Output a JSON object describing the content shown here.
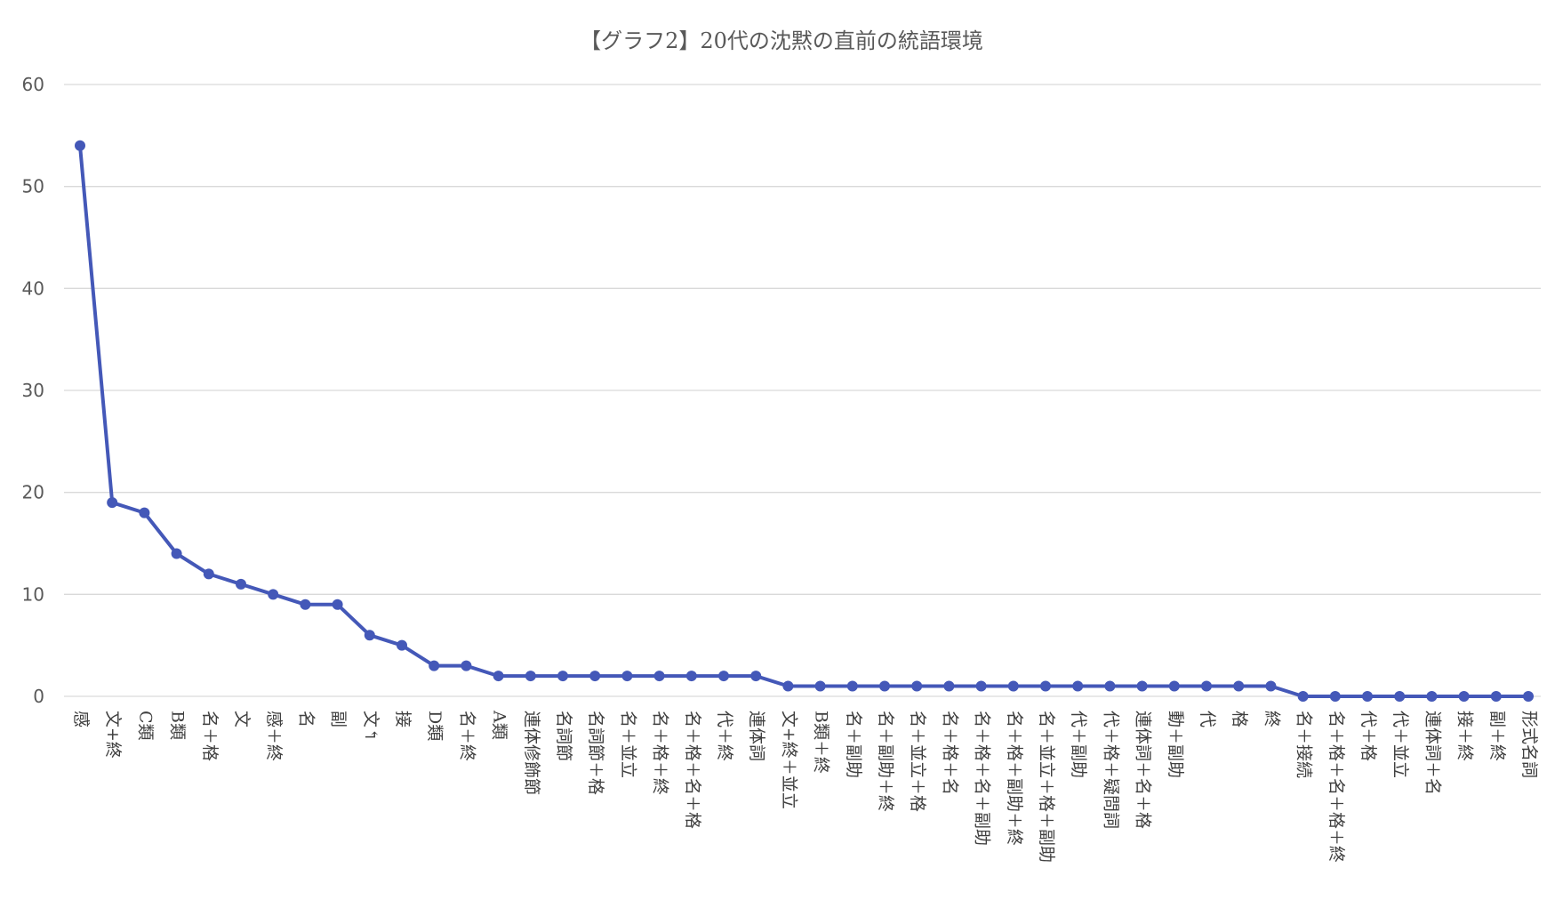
{
  "chart_data": {
    "type": "line",
    "title": "【グラフ2】20代の沈黙の直前の統語環境",
    "xlabel": "",
    "ylabel": "",
    "ylim": [
      0,
      60
    ],
    "yticks": [
      0,
      10,
      20,
      30,
      40,
      50,
      60
    ],
    "grid": true,
    "legend": "none",
    "colors": {
      "line": "#4458B8",
      "grid": "#D9D9D9",
      "text": "#595959"
    },
    "categories": [
      "感",
      "文+終",
      "C類",
      "B類",
      "名＋格",
      "文",
      "感＋終",
      "名",
      "副",
      "文↰",
      "接",
      "D類",
      "名＋終",
      "A類",
      "連体修飾節",
      "名詞節",
      "名詞節＋格",
      "名＋並立",
      "名＋格＋終",
      "名＋格＋名＋格",
      "代＋終",
      "連体詞",
      "文+終＋並立",
      "B類＋終",
      "名＋副助",
      "名＋副助＋終",
      "名＋並立＋格",
      "名＋格＋名",
      "名＋格＋名＋副助",
      "名＋格＋副助＋終",
      "名＋並立＋格＋副助",
      "代＋副助",
      "代＋格＋疑問詞",
      "連体詞＋名＋格",
      "動＋副助",
      "代",
      "格",
      "終",
      "名＋接続",
      "名＋格＋名＋格＋終",
      "代＋格",
      "代＋並立",
      "連体詞＋名",
      "接＋終",
      "副＋終",
      "形式名詞"
    ],
    "series": [
      {
        "values": [
          54,
          19,
          18,
          14,
          12,
          11,
          10,
          9,
          9,
          6,
          5,
          3,
          3,
          2,
          2,
          2,
          2,
          2,
          2,
          2,
          2,
          2,
          1,
          1,
          1,
          1,
          1,
          1,
          1,
          1,
          1,
          1,
          1,
          1,
          1,
          1,
          1,
          1,
          0,
          0,
          0,
          0,
          0,
          0,
          0,
          0
        ]
      }
    ]
  }
}
